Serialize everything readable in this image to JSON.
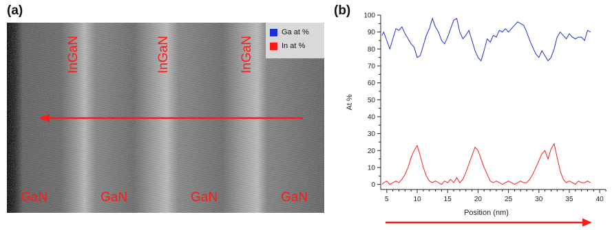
{
  "figure": {
    "panel_a_label": "(a)",
    "panel_b_label": "(b)"
  },
  "micrograph": {
    "layer_labels": [
      "InGaN",
      "InGaN",
      "InGaN"
    ],
    "region_labels": [
      "GaN",
      "GaN",
      "GaN",
      "GaN"
    ],
    "legend": [
      {
        "label": "Ga at %",
        "color": "#1f2fd6"
      },
      {
        "label": "In at %",
        "color": "#ff1a1a"
      }
    ],
    "arrow_color": "#ff1a1a",
    "label_color": "#ff1a1a"
  },
  "chart_data": {
    "type": "line",
    "title": "",
    "xlabel": "Position (nm)",
    "ylabel": "At %",
    "xlim": [
      4,
      41
    ],
    "ylim": [
      -3,
      100
    ],
    "xticks": [
      5,
      10,
      15,
      20,
      25,
      30,
      35,
      40
    ],
    "yticks": [
      0,
      10,
      20,
      30,
      40,
      50,
      60,
      70,
      80,
      90,
      100
    ],
    "grid": false,
    "series": [
      {
        "color": "#1f2fd6",
        "x": [
          4.2,
          4.5,
          5.0,
          5.5,
          6.0,
          6.5,
          7.0,
          7.5,
          8.0,
          8.5,
          9.0,
          9.5,
          10.0,
          10.5,
          11.0,
          11.5,
          12.0,
          12.5,
          13.0,
          13.5,
          14.0,
          14.5,
          15.0,
          15.5,
          16.0,
          16.5,
          17.0,
          17.5,
          18.0,
          18.5,
          19.0,
          19.5,
          20.0,
          20.5,
          21.0,
          21.5,
          22.0,
          22.5,
          23.0,
          23.5,
          24.0,
          24.5,
          25.0,
          25.5,
          26.0,
          26.5,
          27.0,
          27.5,
          28.0,
          28.5,
          29.0,
          29.5,
          30.0,
          30.5,
          31.0,
          31.5,
          32.0,
          32.5,
          33.0,
          33.5,
          34.0,
          34.5,
          35.0,
          35.5,
          36.0,
          36.5,
          37.0,
          37.5,
          38.0,
          38.5
        ],
        "y": [
          88,
          90,
          85,
          80,
          86,
          92,
          91,
          93,
          89,
          86,
          83,
          81,
          75,
          76,
          82,
          88,
          92,
          98,
          93,
          90,
          85,
          83,
          87,
          92,
          97,
          98,
          90,
          86,
          88,
          91,
          85,
          79,
          75,
          73,
          79,
          86,
          84,
          88,
          87,
          91,
          90,
          92,
          90,
          92,
          94,
          96,
          95,
          94,
          90,
          85,
          81,
          77,
          75,
          79,
          76,
          73,
          75,
          80,
          87,
          90,
          88,
          86,
          89,
          87,
          86,
          87,
          87,
          85,
          91,
          90
        ]
      },
      {
        "color": "#ff1a1a",
        "x": [
          4.2,
          4.5,
          5.0,
          5.5,
          6.0,
          6.5,
          7.0,
          7.5,
          8.0,
          8.5,
          9.0,
          9.5,
          10.0,
          10.5,
          11.0,
          11.5,
          12.0,
          12.5,
          13.0,
          13.5,
          14.0,
          14.5,
          15.0,
          15.5,
          16.0,
          16.5,
          17.0,
          17.5,
          18.0,
          18.5,
          19.0,
          19.5,
          20.0,
          20.5,
          21.0,
          21.5,
          22.0,
          22.5,
          23.0,
          23.5,
          24.0,
          24.5,
          25.0,
          25.5,
          26.0,
          26.5,
          27.0,
          27.5,
          28.0,
          28.5,
          29.0,
          29.5,
          30.0,
          30.5,
          31.0,
          31.5,
          32.0,
          32.5,
          33.0,
          33.5,
          34.0,
          34.5,
          35.0,
          35.5,
          36.0,
          36.5,
          37.0,
          37.5,
          38.0,
          38.5
        ],
        "y": [
          0,
          1,
          2,
          0,
          1,
          2,
          1,
          3,
          6,
          10,
          16,
          20,
          23,
          17,
          10,
          5,
          2,
          1,
          2,
          1,
          0,
          2,
          1,
          3,
          1,
          4,
          1,
          3,
          7,
          12,
          17,
          22,
          20,
          15,
          10,
          6,
          2,
          1,
          2,
          1,
          0,
          1,
          2,
          1,
          0,
          1,
          2,
          1,
          1,
          3,
          6,
          10,
          14,
          18,
          20,
          15,
          21,
          24,
          16,
          8,
          3,
          1,
          2,
          1,
          0,
          2,
          1,
          1,
          2,
          1
        ]
      }
    ]
  }
}
